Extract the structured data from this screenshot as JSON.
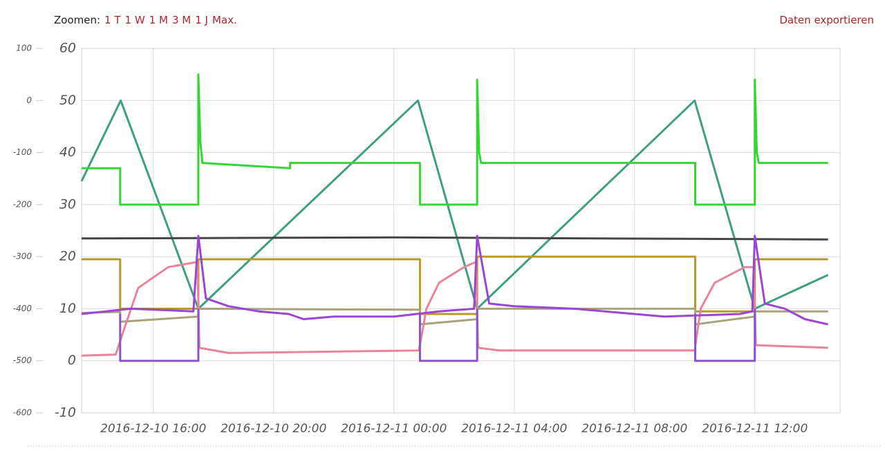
{
  "header": {
    "zoom_label": "Zoomen:",
    "zoom_options": [
      "1 T",
      "1 W",
      "1 M",
      "3 M",
      "1 J",
      "Max."
    ],
    "export": "Daten exportieren"
  },
  "chart_data": {
    "type": "line",
    "grid": true,
    "xlim": [
      "2016-12-10 13:37",
      "2016-12-11 14:50"
    ],
    "xticks": [
      "2016-12-10 16:00",
      "2016-12-10 20:00",
      "2016-12-11 00:00",
      "2016-12-11 04:00",
      "2016-12-11 08:00",
      "2016-12-11 12:00"
    ],
    "ylim": [
      -10,
      60
    ],
    "yticks": [
      -10,
      0,
      10,
      20,
      30,
      40,
      50,
      60
    ],
    "y2lim": [
      -600,
      100
    ],
    "y2ticks": [
      -600,
      -500,
      -400,
      -300,
      -200,
      -100,
      0,
      100
    ],
    "series": [
      {
        "color": "#3f9e84",
        "x": [
          "2016-12-10 13:37",
          "2016-12-10 14:55",
          "2016-12-10 17:30",
          "2016-12-11 00:48",
          "2016-12-11 02:46",
          "2016-12-11 10:00",
          "2016-12-11 12:00",
          "2016-12-11 14:26"
        ],
        "values": [
          34.5,
          50,
          10,
          50,
          10,
          50,
          10,
          16.5
        ]
      },
      {
        "color": "#454545",
        "x": [
          "2016-12-10 13:37",
          "2016-12-11 00:00",
          "2016-12-11 14:26"
        ],
        "values": [
          23.5,
          23.7,
          23.3
        ]
      },
      {
        "color": "#b99a1e",
        "x": [
          "2016-12-10 13:37",
          "2016-12-10 14:54",
          "2016-12-10 14:54",
          "2016-12-10 17:30",
          "2016-12-10 17:30",
          "2016-12-11 00:52",
          "2016-12-11 00:52",
          "2016-12-11 02:46",
          "2016-12-11 02:46",
          "2016-12-11 10:01",
          "2016-12-11 10:01",
          "2016-12-11 12:00",
          "2016-12-11 12:00",
          "2016-12-11 14:26"
        ],
        "values": [
          19.5,
          19.5,
          10,
          10,
          19.5,
          19.5,
          9,
          9,
          20,
          20,
          9.5,
          9.5,
          19.5,
          19.5
        ]
      },
      {
        "color": "#a9a27a",
        "x": [
          "2016-12-10 13:37",
          "2016-12-10 14:54",
          "2016-12-10 14:54",
          "2016-12-10 17:30",
          "2016-12-10 17:30",
          "2016-12-11 00:52",
          "2016-12-11 00:52",
          "2016-12-11 02:46",
          "2016-12-11 02:46",
          "2016-12-11 10:01",
          "2016-12-11 10:01",
          "2016-12-11 12:00",
          "2016-12-11 12:00",
          "2016-12-11 14:26"
        ],
        "values": [
          9.2,
          9.4,
          7.5,
          8.5,
          10,
          9.8,
          7,
          8,
          10,
          10,
          7,
          8.5,
          9.5,
          9.5
        ]
      },
      {
        "color": "#e8849a",
        "x": [
          "2016-12-10 13:37",
          "2016-12-10 14:45",
          "2016-12-10 15:05",
          "2016-12-10 15:30",
          "2016-12-10 16:30",
          "2016-12-10 17:28",
          "2016-12-10 17:32",
          "2016-12-10 18:30",
          "2016-12-11 00:50",
          "2016-12-11 01:05",
          "2016-12-11 01:30",
          "2016-12-11 02:20",
          "2016-12-11 02:44",
          "2016-12-11 02:48",
          "2016-12-11 03:30",
          "2016-12-11 10:00",
          "2016-12-11 10:12",
          "2016-12-11 10:40",
          "2016-12-11 11:40",
          "2016-12-11 11:58",
          "2016-12-11 12:02",
          "2016-12-11 14:26"
        ],
        "values": [
          1,
          1.2,
          7,
          14,
          18,
          19,
          2.5,
          1.5,
          2,
          10,
          15,
          18,
          19,
          2.5,
          2,
          2,
          10,
          15,
          18,
          18,
          3,
          2.5
        ]
      },
      {
        "color": "#8a55c8",
        "x": [
          "2016-12-10 14:54",
          "2016-12-10 14:54",
          "2016-12-10 17:30",
          "2016-12-10 17:30",
          null,
          "2016-12-11 00:52",
          "2016-12-11 00:52",
          "2016-12-11 02:46",
          "2016-12-11 02:46",
          null,
          "2016-12-11 10:01",
          "2016-12-11 10:01",
          "2016-12-11 12:00",
          "2016-12-11 12:00"
        ],
        "values": [
          9,
          0,
          0,
          10,
          null,
          9,
          0,
          0,
          10,
          null,
          9,
          0,
          0,
          10
        ]
      },
      {
        "color": "#9b45d6",
        "x": [
          "2016-12-10 13:37",
          "2016-12-10 15:15",
          "2016-12-10 17:20",
          "2016-12-10 17:30",
          "2016-12-10 17:45",
          "2016-12-10 18:30",
          "2016-12-10 19:30",
          "2016-12-10 20:30",
          "2016-12-10 21:00",
          "2016-12-10 22:00",
          "2016-12-11 00:00",
          "2016-12-11 01:30",
          "2016-12-11 02:40",
          "2016-12-11 02:46",
          "2016-12-11 03:10",
          "2016-12-11 04:00",
          "2016-12-11 06:00",
          "2016-12-11 08:00",
          "2016-12-11 09:00",
          "2016-12-11 11:30",
          "2016-12-11 11:55",
          "2016-12-11 12:00",
          "2016-12-11 12:20",
          "2016-12-11 13:00",
          "2016-12-11 13:40",
          "2016-12-11 14:26"
        ],
        "values": [
          9,
          10,
          9.5,
          24,
          12,
          10.5,
          9.5,
          9,
          8,
          8.5,
          8.5,
          9.5,
          10,
          24,
          11,
          10.5,
          10,
          9,
          8.5,
          9,
          9.5,
          24,
          11,
          10,
          8,
          7
        ]
      },
      {
        "color": "#33d633",
        "x": [
          "2016-12-10 13:37",
          "2016-12-10 14:54",
          "2016-12-10 14:54",
          "2016-12-10 17:30",
          "2016-12-10 17:30",
          "2016-12-10 17:34",
          "2016-12-10 17:38",
          "2016-12-10 20:33",
          "2016-12-10 20:33",
          "2016-12-11 00:52",
          "2016-12-11 00:52",
          "2016-12-11 02:46",
          "2016-12-11 02:46",
          "2016-12-11 02:50",
          "2016-12-11 02:54",
          "2016-12-11 10:01",
          "2016-12-11 10:01",
          "2016-12-11 12:00",
          "2016-12-11 12:00",
          "2016-12-11 12:04",
          "2016-12-11 12:08",
          "2016-12-11 14:26"
        ],
        "values": [
          37,
          37,
          30,
          30,
          55,
          42,
          38,
          37,
          38,
          38,
          30,
          30,
          54,
          40,
          38,
          38,
          30,
          30,
          54,
          40,
          38,
          38
        ]
      }
    ]
  }
}
